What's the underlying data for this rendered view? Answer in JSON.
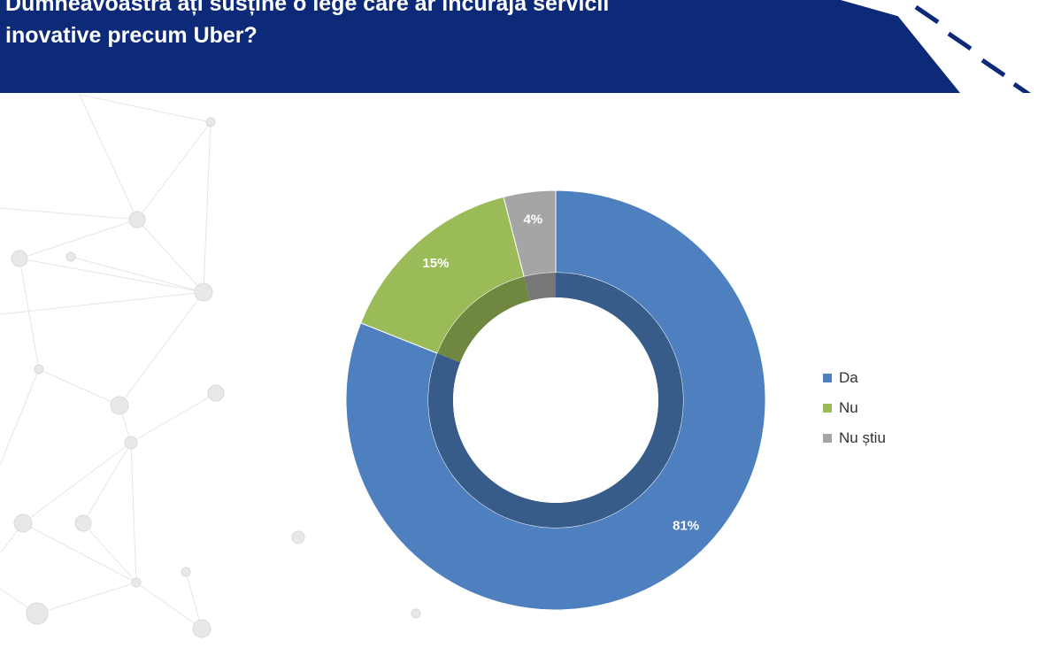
{
  "header": {
    "title_line1": "Dumneavoastră ați susține o lege care ar încuraja servicii",
    "title_line2": "inovative precum Uber?",
    "background_color": "#0c2a78"
  },
  "chart_data": {
    "type": "pie",
    "title": "Dumneavoastră ați susține o lege care ar încuraja servicii inovative precum Uber?",
    "labels": [
      "Da",
      "Nu",
      "Nu știu"
    ],
    "values": [
      81,
      15,
      4
    ],
    "data_labels": [
      "81%",
      "15%",
      "4%"
    ],
    "colors": [
      "#4e80c0",
      "#9bbb59",
      "#a5a5a5"
    ],
    "legend_position": "right"
  }
}
